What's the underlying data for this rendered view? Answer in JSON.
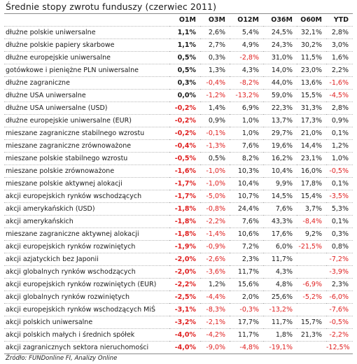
{
  "title": "Średnie stopy zwrotu funduszy (czerwiec 2011)",
  "columns": [
    "O1M",
    "O3M",
    "O12M",
    "O36M",
    "O60M",
    "YTD"
  ],
  "rows": [
    {
      "name": "dłużne polskie uniwersalne",
      "values": [
        "1,1%",
        "2,6%",
        "5,4%",
        "24,5%",
        "32,1%",
        "2,8%"
      ]
    },
    {
      "name": "dłużne polskie papiery skarbowe",
      "values": [
        "1,1%",
        "2,7%",
        "4,9%",
        "24,3%",
        "30,2%",
        "3,0%"
      ]
    },
    {
      "name": "dłużne europejskie uniwersalne",
      "values": [
        "0,5%",
        "0,3%",
        "-2,8%",
        "31,0%",
        "11,5%",
        "1,6%"
      ]
    },
    {
      "name": "gotówkowe i pieniężne PLN uniwersalne",
      "values": [
        "0,5%",
        "1,3%",
        "4,3%",
        "14,0%",
        "23,0%",
        "2,2%"
      ]
    },
    {
      "name": "dłużne zagraniczne",
      "values": [
        "0,3%",
        "-0,4%",
        "-8,2%",
        "44,0%",
        "13,6%",
        "-1,6%"
      ]
    },
    {
      "name": "dłużne USA uniwersalne",
      "values": [
        "0,0%",
        "-1,2%",
        "-13,2%",
        "59,0%",
        "15,5%",
        "-4,5%"
      ]
    },
    {
      "name": "dłużne USA uniwersalne (USD)",
      "values": [
        "-0,2%",
        "1,4%",
        "6,9%",
        "22,3%",
        "31,3%",
        "2,8%"
      ]
    },
    {
      "name": "dłużne europejskie uniwersalne (EUR)",
      "values": [
        "-0,2%",
        "0,9%",
        "1,0%",
        "13,7%",
        "17,3%",
        "0,9%"
      ]
    },
    {
      "name": "mieszane zagraniczne stabilnego wzrostu",
      "values": [
        "-0,2%",
        "-0,1%",
        "1,0%",
        "29,7%",
        "21,0%",
        "0,1%"
      ]
    },
    {
      "name": "mieszane zagraniczne zrównoważone",
      "values": [
        "-0,4%",
        "-1,3%",
        "7,6%",
        "19,6%",
        "14,4%",
        "1,2%"
      ]
    },
    {
      "name": "mieszane polskie stabilnego wzrostu",
      "values": [
        "-0,5%",
        "0,5%",
        "8,2%",
        "16,2%",
        "23,1%",
        "1,0%"
      ]
    },
    {
      "name": "mieszane polskie zrównoważone",
      "values": [
        "-1,6%",
        "-1,0%",
        "10,3%",
        "10,4%",
        "16,0%",
        "-0,5%"
      ]
    },
    {
      "name": "mieszane polskie aktywnej alokacji",
      "values": [
        "-1,7%",
        "-1,0%",
        "10,4%",
        "9,9%",
        "17,8%",
        "0,1%"
      ]
    },
    {
      "name": "akcji europejskich rynków wschodzących",
      "values": [
        "-1,7%",
        "-5,0%",
        "10,7%",
        "14,5%",
        "15,4%",
        "-3,5%"
      ]
    },
    {
      "name": "akcji amerykańskich (USD)",
      "values": [
        "-1,8%",
        "-0,8%",
        "24,4%",
        "7,6%",
        "3,7%",
        "5,3%"
      ]
    },
    {
      "name": "akcji amerykańskich",
      "values": [
        "-1,8%",
        "-2,2%",
        "7,6%",
        "43,3%",
        "-8,4%",
        "0,1%"
      ]
    },
    {
      "name": "mieszane zagraniczne aktywnej alokacji",
      "values": [
        "-1,8%",
        "-1,4%",
        "10,6%",
        "17,6%",
        "9,2%",
        "0,3%"
      ]
    },
    {
      "name": "akcji europejskich rynków rozwiniętych",
      "values": [
        "-1,9%",
        "-0,9%",
        "7,2%",
        "6,0%",
        "-21,5%",
        "0,8%"
      ]
    },
    {
      "name": "akcji azjatyckich bez Japonii",
      "values": [
        "-2,0%",
        "-2,6%",
        "2,3%",
        "11,7%",
        "",
        "-7,2%"
      ]
    },
    {
      "name": "akcji globalnych rynków wschodzących",
      "values": [
        "-2,0%",
        "-3,6%",
        "11,7%",
        "4,3%",
        "",
        "-3,9%"
      ]
    },
    {
      "name": "akcji europejskich rynków rozwiniętych (EUR)",
      "values": [
        "-2,2%",
        "1,2%",
        "15,6%",
        "4,8%",
        "-6,9%",
        "2,3%"
      ]
    },
    {
      "name": "akcji globalnych rynków rozwiniętych",
      "values": [
        "-2,5%",
        "-4,4%",
        "2,0%",
        "25,6%",
        "-5,2%",
        "-6,0%"
      ]
    },
    {
      "name": "akcji europejskich rynków wschodzących MiŚ",
      "values": [
        "-3,1%",
        "-8,3%",
        "-0,3%",
        "-13,2%",
        "",
        "-7,6%"
      ]
    },
    {
      "name": "akcji polskich uniwersalne",
      "values": [
        "-3,2%",
        "-2,1%",
        "17,7%",
        "11,7%",
        "15,7%",
        "-0,5%"
      ]
    },
    {
      "name": "akcji polskich małych i średnich spółek",
      "values": [
        "-4,0%",
        "-4,2%",
        "11,7%",
        "1,8%",
        "21,3%",
        "-2,2%"
      ]
    },
    {
      "name": "akcji zagranicznych sektora nieruchomości",
      "values": [
        "-4,0%",
        "-9,0%",
        "-4,8%",
        "-19,1%",
        "",
        "-12,5%"
      ]
    }
  ],
  "source": "Źródło: FUNDonline FI, Analizy Online",
  "colors": {
    "negative": "#e02020",
    "positive": "#1a1a1a"
  }
}
